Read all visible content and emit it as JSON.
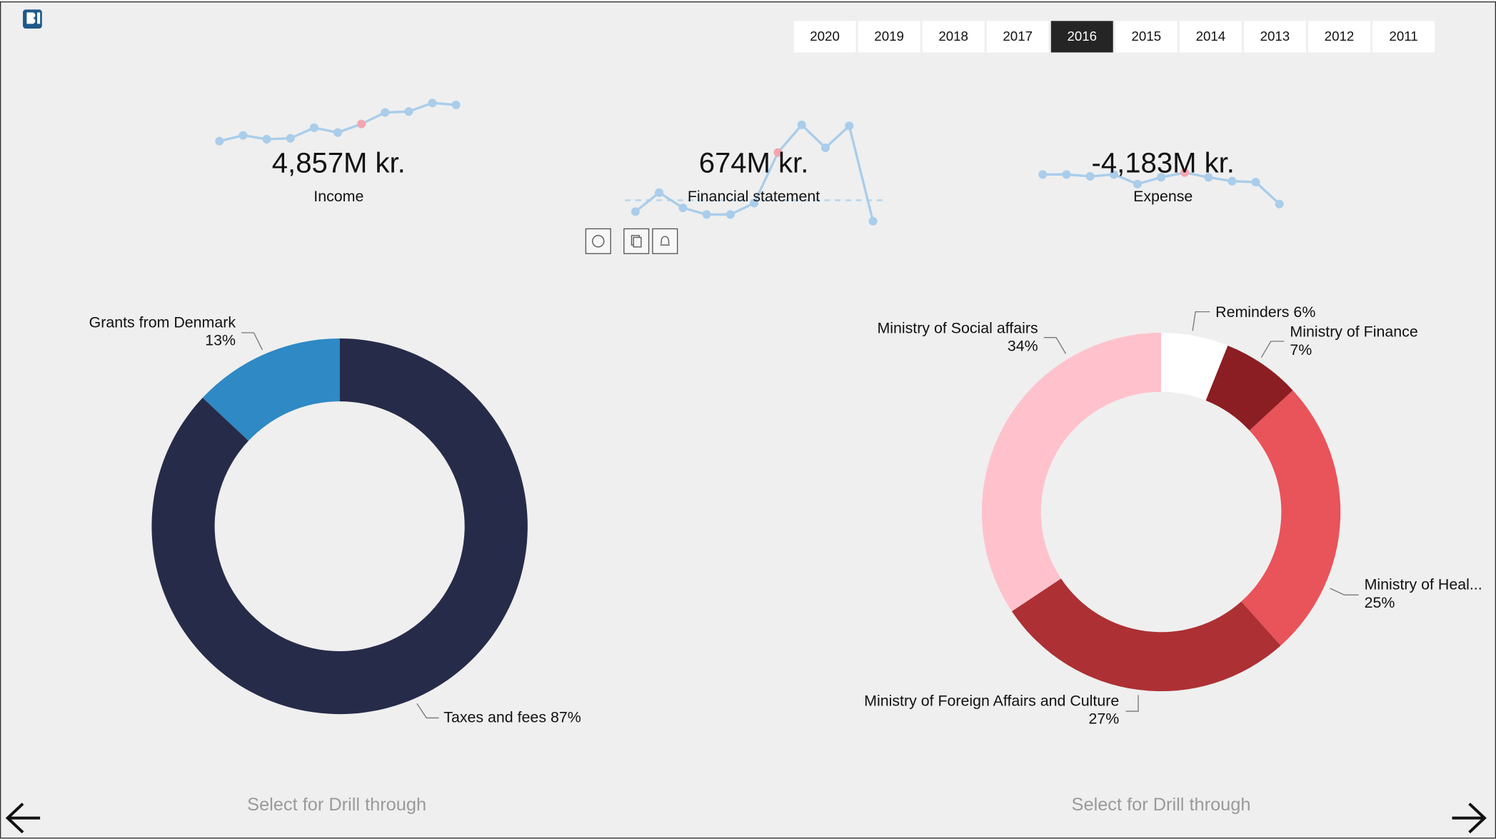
{
  "years": [
    "2020",
    "2019",
    "2018",
    "2017",
    "2016",
    "2015",
    "2014",
    "2013",
    "2012",
    "2011"
  ],
  "selected_year_index": 4,
  "kpis": [
    {
      "value": "4,857M kr.",
      "label": "Income",
      "trend": [
        52,
        58,
        54,
        55,
        66,
        61,
        70,
        82,
        83,
        92,
        90
      ],
      "highlight_index": 6
    },
    {
      "value": "674M kr.",
      "label": "Financial statement",
      "trend": [
        28,
        48,
        32,
        25,
        25,
        37,
        90,
        119,
        95,
        118,
        18
      ],
      "highlight_index": 6
    },
    {
      "value": "-4,183M kr.",
      "label": "Expense",
      "trend": [
        67,
        67,
        65,
        67,
        57,
        64,
        69,
        64,
        60,
        59,
        36
      ],
      "highlight_index": 6
    }
  ],
  "chart_data": [
    {
      "type": "donut",
      "categories": [
        "Taxes and fees",
        "Grants from Denmark"
      ],
      "values": [
        87,
        13
      ],
      "value_labels": [
        "87%",
        "13%"
      ],
      "colors": [
        "#272b4a",
        "#2e89c5"
      ],
      "note": "Select for Drill through"
    },
    {
      "type": "donut",
      "categories": [
        "Reminders",
        "Ministry of Finance",
        "Ministry of Heal...",
        "Ministry of Foreign Affairs and Culture",
        "Ministry of Social affairs"
      ],
      "values": [
        6,
        7,
        25,
        27,
        34
      ],
      "value_labels": [
        "6%",
        "7%",
        "25%",
        "27%",
        "34%"
      ],
      "colors": [
        "#ffffff",
        "#8b1e22",
        "#e9535a",
        "#ad3034",
        "#ffc2cc"
      ],
      "note": "Select for Drill through"
    }
  ]
}
